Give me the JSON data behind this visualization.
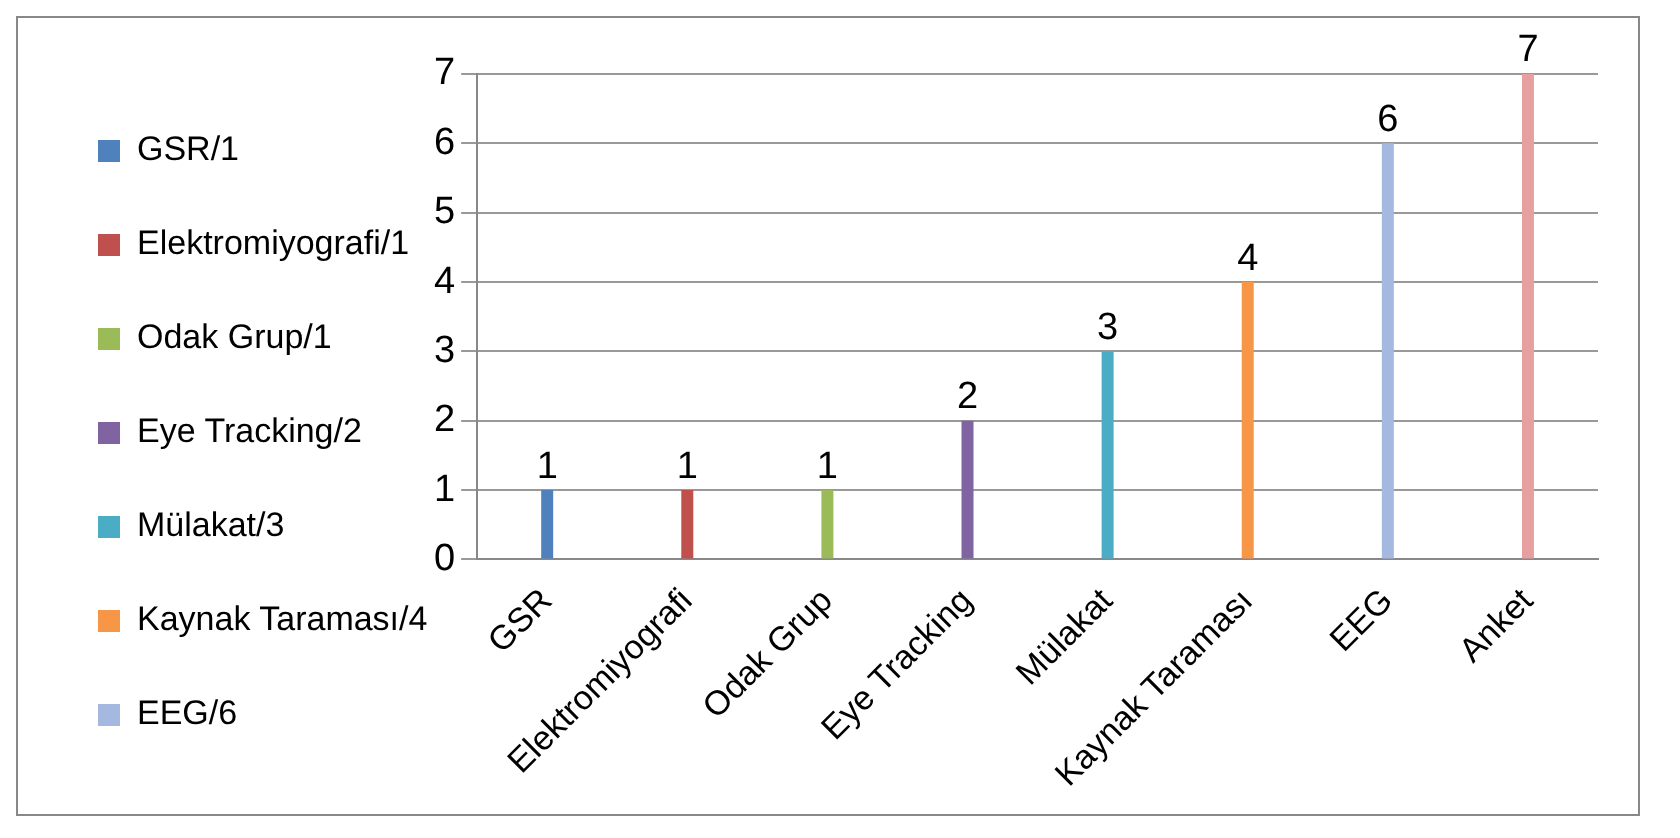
{
  "chart_data": {
    "type": "bar",
    "categories": [
      "GSR",
      "Elektromiyografi",
      "Odak Grup",
      "Eye Tracking",
      "Mülakat",
      "Kaynak Taraması",
      "EEG",
      "Anket"
    ],
    "series": [
      {
        "name": "GSR/1",
        "color": "#4f81bd",
        "values": [
          1,
          null,
          null,
          null,
          null,
          null,
          null,
          null
        ]
      },
      {
        "name": "Elektromiyografi/1",
        "color": "#c0504d",
        "values": [
          null,
          1,
          null,
          null,
          null,
          null,
          null,
          null
        ]
      },
      {
        "name": "Odak Grup/1",
        "color": "#9bbb59",
        "values": [
          null,
          null,
          1,
          null,
          null,
          null,
          null,
          null
        ]
      },
      {
        "name": "Eye Tracking/2",
        "color": "#8064a2",
        "values": [
          null,
          null,
          null,
          2,
          null,
          null,
          null,
          null
        ]
      },
      {
        "name": "Mülakat/3",
        "color": "#4bacc6",
        "values": [
          null,
          null,
          null,
          null,
          3,
          null,
          null,
          null
        ]
      },
      {
        "name": "Kaynak Taraması/4",
        "color": "#f79646",
        "values": [
          null,
          null,
          null,
          null,
          null,
          4,
          null,
          null
        ]
      },
      {
        "name": "EEG/6",
        "color": "#a5b8e0",
        "values": [
          null,
          null,
          null,
          null,
          null,
          null,
          6,
          null
        ]
      },
      {
        "color": "#e6a0a0",
        "values": [
          null,
          null,
          null,
          null,
          null,
          null,
          null,
          7
        ]
      }
    ],
    "ylim": [
      0,
      7
    ],
    "yticks": [
      0,
      1,
      2,
      3,
      4,
      5,
      6,
      7
    ],
    "grid": "y",
    "legend": "left",
    "data_labels": true
  }
}
